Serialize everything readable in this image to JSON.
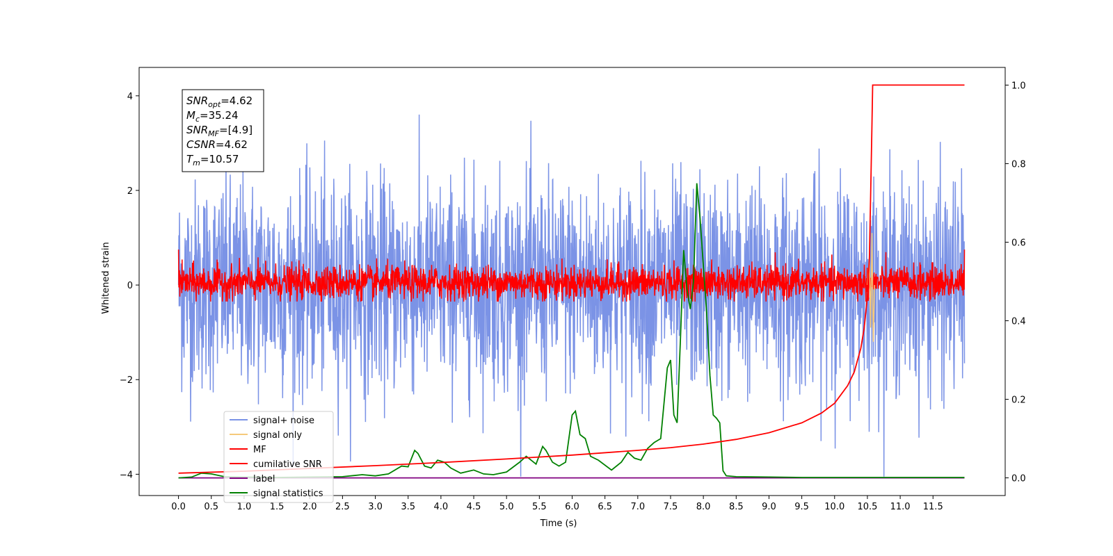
{
  "chart_data": {
    "type": "line",
    "title": "",
    "xlabel": "Time (s)",
    "ylabel": "Whitened strain",
    "y2label": "",
    "xlim": [
      -0.6,
      12.6
    ],
    "ylim": [
      -4.45,
      4.6
    ],
    "y2lim": [
      -0.045,
      1.045
    ],
    "x_ticks": [
      0.0,
      0.5,
      1.0,
      1.5,
      2.0,
      2.5,
      3.0,
      3.5,
      4.0,
      4.5,
      5.0,
      5.5,
      6.0,
      6.5,
      7.0,
      7.5,
      8.0,
      8.5,
      9.0,
      9.5,
      10.0,
      10.5,
      11.0,
      11.5
    ],
    "x_tick_labels": [
      "0.0",
      "0.5",
      "1.0",
      "1.5",
      "2.0",
      "2.5",
      "3.0",
      "3.5",
      "4.0",
      "4.5",
      "5.0",
      "5.5",
      "6.0",
      "6.5",
      "7.0",
      "7.5",
      "8.0",
      "8.5",
      "9.0",
      "9.5",
      "10.0",
      "10.5",
      "11.0",
      "11.5"
    ],
    "y_ticks": [
      -4,
      -2,
      0,
      2,
      4
    ],
    "y_tick_labels": [
      "−4",
      "−2",
      "0",
      "2",
      "4"
    ],
    "y2_ticks": [
      0.0,
      0.2,
      0.4,
      0.6,
      0.8,
      1.0
    ],
    "y2_tick_labels": [
      "0.0",
      "0.2",
      "0.4",
      "0.6",
      "0.8",
      "1.0"
    ],
    "grid": false,
    "legend_position": "lower-left",
    "colors": {
      "signal_noise": "#7b93e6",
      "signal_only": "#f5c97a",
      "mf": "#ff0000",
      "cumulative_snr": "#ff0000",
      "label": "#800080",
      "signal_statistics": "#008000"
    },
    "series": [
      {
        "name": "signal+ noise",
        "axis": "left",
        "color": "#7b93e6",
        "description": "whitened noise, approx. uniform spread +/-2.5 with peaks to about +/-4"
      },
      {
        "name": "signal only",
        "axis": "left",
        "color": "#f5c97a",
        "x": [
          10.5,
          10.53,
          10.55,
          10.57,
          10.59,
          10.61
        ],
        "y": [
          0.0,
          0.6,
          -0.9,
          1.1,
          -1.2,
          0.0
        ]
      },
      {
        "name": "MF",
        "axis": "left",
        "color": "#ff0000",
        "description": "matched-filter output, oscillating roughly between -0.3 and 0.5, with an initial value near 1.0 at t=0"
      },
      {
        "name": "cumilative SNR",
        "axis": "right",
        "color": "#ff0000",
        "x": [
          0.0,
          1.0,
          2.0,
          3.0,
          4.0,
          5.0,
          6.0,
          7.0,
          7.5,
          8.0,
          8.5,
          9.0,
          9.5,
          9.8,
          10.0,
          10.2,
          10.3,
          10.4,
          10.45,
          10.5,
          10.53,
          10.55,
          10.57,
          10.58,
          11.0,
          11.5,
          11.98
        ],
        "y": [
          0.012,
          0.017,
          0.024,
          0.031,
          0.039,
          0.048,
          0.058,
          0.07,
          0.077,
          0.086,
          0.098,
          0.115,
          0.14,
          0.165,
          0.19,
          0.235,
          0.27,
          0.33,
          0.38,
          0.46,
          0.56,
          0.72,
          0.9,
          1.0,
          1.0,
          1.0,
          1.0
        ]
      },
      {
        "name": "label",
        "axis": "right",
        "color": "#800080",
        "x": [
          0.0,
          11.98
        ],
        "y": [
          0.0,
          0.0
        ]
      },
      {
        "name": "signal statistics",
        "axis": "right",
        "color": "#008000",
        "x": [
          0.0,
          0.2,
          0.35,
          0.5,
          0.7,
          1.0,
          1.5,
          2.0,
          2.5,
          2.8,
          3.0,
          3.2,
          3.4,
          3.5,
          3.6,
          3.65,
          3.75,
          3.85,
          3.95,
          4.05,
          4.15,
          4.3,
          4.5,
          4.65,
          4.8,
          5.0,
          5.2,
          5.3,
          5.45,
          5.55,
          5.6,
          5.7,
          5.8,
          5.9,
          6.0,
          6.05,
          6.12,
          6.2,
          6.28,
          6.4,
          6.6,
          6.75,
          6.85,
          6.95,
          7.05,
          7.15,
          7.25,
          7.35,
          7.45,
          7.5,
          7.55,
          7.6,
          7.65,
          7.7,
          7.75,
          7.8,
          7.85,
          7.9,
          7.95,
          8.0,
          8.05,
          8.1,
          8.15,
          8.2,
          8.25,
          8.3,
          8.35,
          8.5,
          9.0,
          9.5,
          10.0,
          11.0,
          11.98
        ],
        "y": [
          0.0,
          0.002,
          0.012,
          0.01,
          0.003,
          0.002,
          0.001,
          0.002,
          0.003,
          0.008,
          0.005,
          0.01,
          0.03,
          0.028,
          0.07,
          0.062,
          0.03,
          0.025,
          0.045,
          0.04,
          0.025,
          0.012,
          0.02,
          0.01,
          0.008,
          0.015,
          0.04,
          0.055,
          0.035,
          0.08,
          0.07,
          0.04,
          0.03,
          0.04,
          0.16,
          0.17,
          0.11,
          0.1,
          0.055,
          0.045,
          0.02,
          0.04,
          0.065,
          0.05,
          0.045,
          0.075,
          0.09,
          0.1,
          0.28,
          0.3,
          0.16,
          0.14,
          0.35,
          0.58,
          0.48,
          0.43,
          0.5,
          0.75,
          0.66,
          0.54,
          0.42,
          0.26,
          0.16,
          0.152,
          0.14,
          0.018,
          0.005,
          0.003,
          0.002,
          0.001,
          0.001,
          0.001,
          0.001
        ]
      }
    ],
    "annotation": {
      "lines": [
        {
          "base": "SNR",
          "sub": "opt",
          "value": "=4.62"
        },
        {
          "base": "M",
          "sub": "c",
          "value": "=35.24"
        },
        {
          "base": "SNR",
          "sub": "MF",
          "value": "=[4.9]"
        },
        {
          "base": "CSNR",
          "sub": "",
          "value": "=4.62"
        },
        {
          "base": "T",
          "sub": "m",
          "value": "=10.57"
        }
      ]
    },
    "legend": [
      {
        "label": "signal+ noise",
        "color": "#7b93e6"
      },
      {
        "label": "signal only",
        "color": "#f5c97a"
      },
      {
        "label": "MF",
        "color": "#ff0000"
      },
      {
        "label": "cumilative SNR",
        "color": "#ff0000"
      },
      {
        "label": "label",
        "color": "#800080"
      },
      {
        "label": "signal statistics",
        "color": "#008000"
      }
    ]
  }
}
